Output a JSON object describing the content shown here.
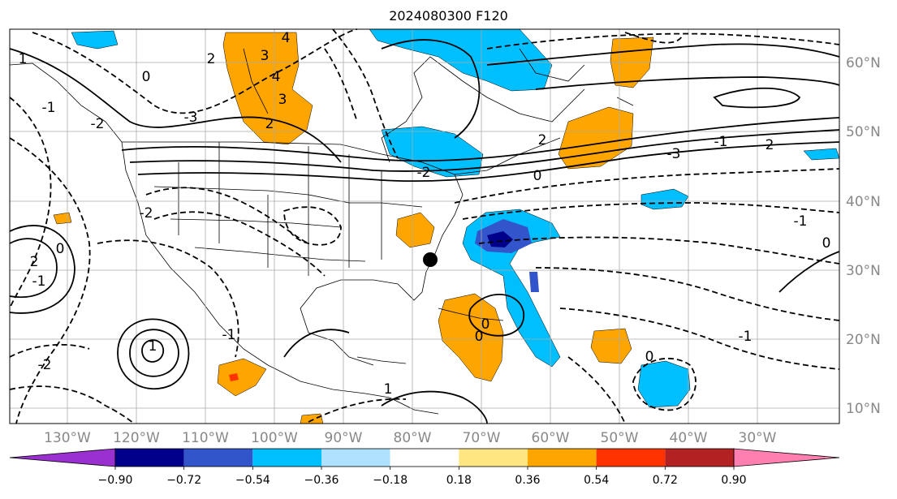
{
  "title": "2024080300 F120",
  "map": {
    "longitude_labels": [
      "130°W",
      "120°W",
      "110°W",
      "100°W",
      "90°W",
      "80°W",
      "70°W",
      "60°W",
      "50°W",
      "40°W",
      "30°W"
    ],
    "latitude_labels": [
      "60°N",
      "50°N",
      "40°N",
      "30°N",
      "20°N",
      "10°N"
    ],
    "contour_labels": [
      "0",
      "2",
      "3",
      "4",
      "-2",
      "-1",
      "-3",
      "1",
      "2",
      "3",
      "4",
      "-2",
      "-1",
      "0",
      "2",
      "1",
      "0",
      "-2",
      "2",
      "-1",
      "-3",
      "0",
      "1",
      "2",
      "-1",
      "-2",
      "0",
      "-1",
      "0",
      "-1",
      "0"
    ],
    "marker": "station-dot"
  },
  "colorbar": {
    "ticks": [
      "−0.90",
      "−0.72",
      "−0.54",
      "−0.36",
      "−0.18",
      "0.18",
      "0.36",
      "0.54",
      "0.72",
      "0.90"
    ],
    "colors": [
      "#9b30d0",
      "#00008b",
      "#3355cc",
      "#00bfff",
      "#aee0ff",
      "#ffffff",
      "#ffe680",
      "#ffa500",
      "#ff3300",
      "#b22222",
      "#ff80b0"
    ]
  }
}
